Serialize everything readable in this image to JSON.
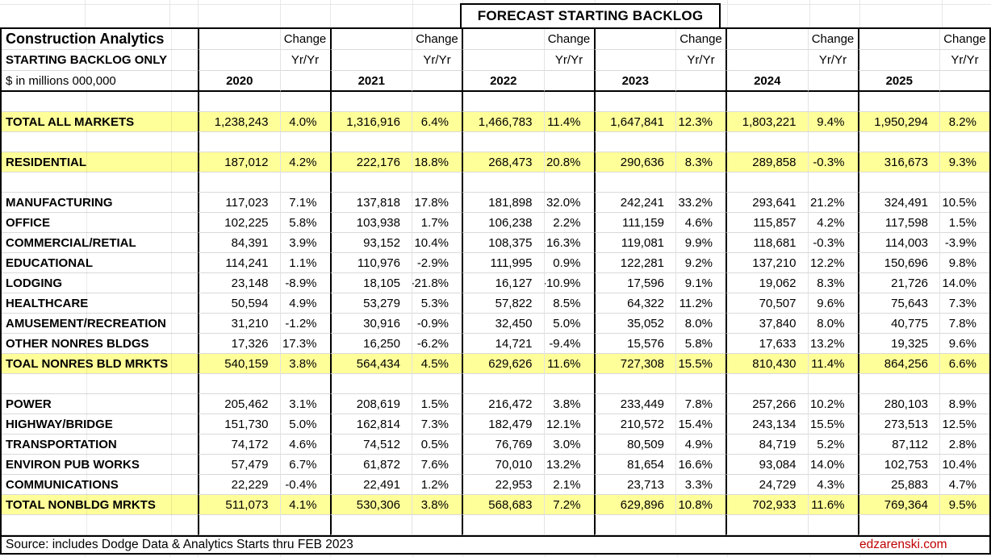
{
  "title": "FORECAST STARTING BACKLOG",
  "header": {
    "brand": "Construction Analytics",
    "subtitle": "STARTING BACKLOG ONLY",
    "units_note": "$ in millions 000,000",
    "change_label": "Change",
    "change_sublabel": "Yr/Yr",
    "years": [
      "2020",
      "2021",
      "2022",
      "2023",
      "2024",
      "2025"
    ]
  },
  "chart_data": {
    "type": "table",
    "title": "FORECAST STARTING BACKLOG",
    "units": "$ in millions 000,000",
    "column_groups": [
      "2020",
      "2021",
      "2022",
      "2023",
      "2024",
      "2025"
    ],
    "subcolumns": [
      "Starting Backlog $M",
      "Change Yr/Yr"
    ],
    "rows": [
      {
        "type": "spacer"
      },
      {
        "type": "data",
        "label": "TOTAL ALL MARKETS",
        "highlight": true,
        "cells": [
          [
            "1,238,243",
            "4.0%"
          ],
          [
            "1,316,916",
            "6.4%"
          ],
          [
            "1,466,783",
            "11.4%"
          ],
          [
            "1,647,841",
            "12.3%"
          ],
          [
            "1,803,221",
            "9.4%"
          ],
          [
            "1,950,294",
            "8.2%"
          ]
        ]
      },
      {
        "type": "spacer"
      },
      {
        "type": "data",
        "label": "RESIDENTIAL",
        "highlight": true,
        "cells": [
          [
            "187,012",
            "4.2%"
          ],
          [
            "222,176",
            "18.8%"
          ],
          [
            "268,473",
            "20.8%"
          ],
          [
            "290,636",
            "8.3%"
          ],
          [
            "289,858",
            "-0.3%"
          ],
          [
            "316,673",
            "9.3%"
          ]
        ]
      },
      {
        "type": "spacer"
      },
      {
        "type": "data",
        "label": "MANUFACTURING",
        "highlight": false,
        "cells": [
          [
            "117,023",
            "7.1%"
          ],
          [
            "137,818",
            "17.8%"
          ],
          [
            "181,898",
            "32.0%"
          ],
          [
            "242,241",
            "33.2%"
          ],
          [
            "293,641",
            "21.2%"
          ],
          [
            "324,491",
            "10.5%"
          ]
        ]
      },
      {
        "type": "data",
        "label": "OFFICE",
        "highlight": false,
        "cells": [
          [
            "102,225",
            "5.8%"
          ],
          [
            "103,938",
            "1.7%"
          ],
          [
            "106,238",
            "2.2%"
          ],
          [
            "111,159",
            "4.6%"
          ],
          [
            "115,857",
            "4.2%"
          ],
          [
            "117,598",
            "1.5%"
          ]
        ]
      },
      {
        "type": "data",
        "label": "COMMERCIAL/RETIAL",
        "highlight": false,
        "cells": [
          [
            "84,391",
            "3.9%"
          ],
          [
            "93,152",
            "10.4%"
          ],
          [
            "108,375",
            "16.3%"
          ],
          [
            "119,081",
            "9.9%"
          ],
          [
            "118,681",
            "-0.3%"
          ],
          [
            "114,003",
            "-3.9%"
          ]
        ]
      },
      {
        "type": "data",
        "label": "EDUCATIONAL",
        "highlight": false,
        "cells": [
          [
            "114,241",
            "1.1%"
          ],
          [
            "110,976",
            "-2.9%"
          ],
          [
            "111,995",
            "0.9%"
          ],
          [
            "122,281",
            "9.2%"
          ],
          [
            "137,210",
            "12.2%"
          ],
          [
            "150,696",
            "9.8%"
          ]
        ]
      },
      {
        "type": "data",
        "label": "LODGING",
        "highlight": false,
        "cells": [
          [
            "23,148",
            "-8.9%"
          ],
          [
            "18,105",
            "-21.8%"
          ],
          [
            "16,127",
            "-10.9%"
          ],
          [
            "17,596",
            "9.1%"
          ],
          [
            "19,062",
            "8.3%"
          ],
          [
            "21,726",
            "14.0%"
          ]
        ]
      },
      {
        "type": "data",
        "label": "HEALTHCARE",
        "highlight": false,
        "cells": [
          [
            "50,594",
            "4.9%"
          ],
          [
            "53,279",
            "5.3%"
          ],
          [
            "57,822",
            "8.5%"
          ],
          [
            "64,322",
            "11.2%"
          ],
          [
            "70,507",
            "9.6%"
          ],
          [
            "75,643",
            "7.3%"
          ]
        ]
      },
      {
        "type": "data",
        "label": "AMUSEMENT/RECREATION",
        "highlight": false,
        "cells": [
          [
            "31,210",
            "-1.2%"
          ],
          [
            "30,916",
            "-0.9%"
          ],
          [
            "32,450",
            "5.0%"
          ],
          [
            "35,052",
            "8.0%"
          ],
          [
            "37,840",
            "8.0%"
          ],
          [
            "40,775",
            "7.8%"
          ]
        ]
      },
      {
        "type": "data",
        "label": "OTHER NONRES BLDGS",
        "highlight": false,
        "cells": [
          [
            "17,326",
            "17.3%"
          ],
          [
            "16,250",
            "-6.2%"
          ],
          [
            "14,721",
            "-9.4%"
          ],
          [
            "15,576",
            "5.8%"
          ],
          [
            "17,633",
            "13.2%"
          ],
          [
            "19,325",
            "9.6%"
          ]
        ]
      },
      {
        "type": "data",
        "label": "TOAL NONRES BLD MRKTS",
        "highlight": true,
        "cells": [
          [
            "540,159",
            "3.8%"
          ],
          [
            "564,434",
            "4.5%"
          ],
          [
            "629,626",
            "11.6%"
          ],
          [
            "727,308",
            "15.5%"
          ],
          [
            "810,430",
            "11.4%"
          ],
          [
            "864,256",
            "6.6%"
          ]
        ]
      },
      {
        "type": "spacer"
      },
      {
        "type": "data",
        "label": "POWER",
        "highlight": false,
        "cells": [
          [
            "205,462",
            "3.1%"
          ],
          [
            "208,619",
            "1.5%"
          ],
          [
            "216,472",
            "3.8%"
          ],
          [
            "233,449",
            "7.8%"
          ],
          [
            "257,266",
            "10.2%"
          ],
          [
            "280,103",
            "8.9%"
          ]
        ]
      },
      {
        "type": "data",
        "label": "HIGHWAY/BRIDGE",
        "highlight": false,
        "cells": [
          [
            "151,730",
            "5.0%"
          ],
          [
            "162,814",
            "7.3%"
          ],
          [
            "182,479",
            "12.1%"
          ],
          [
            "210,572",
            "15.4%"
          ],
          [
            "243,134",
            "15.5%"
          ],
          [
            "273,513",
            "12.5%"
          ]
        ]
      },
      {
        "type": "data",
        "label": "TRANSPORTATION",
        "highlight": false,
        "cells": [
          [
            "74,172",
            "4.6%"
          ],
          [
            "74,512",
            "0.5%"
          ],
          [
            "76,769",
            "3.0%"
          ],
          [
            "80,509",
            "4.9%"
          ],
          [
            "84,719",
            "5.2%"
          ],
          [
            "87,112",
            "2.8%"
          ]
        ]
      },
      {
        "type": "data",
        "label": "ENVIRON PUB WORKS",
        "highlight": false,
        "cells": [
          [
            "57,479",
            "6.7%"
          ],
          [
            "61,872",
            "7.6%"
          ],
          [
            "70,010",
            "13.2%"
          ],
          [
            "81,654",
            "16.6%"
          ],
          [
            "93,084",
            "14.0%"
          ],
          [
            "102,753",
            "10.4%"
          ]
        ]
      },
      {
        "type": "data",
        "label": "COMMUNICATIONS",
        "highlight": false,
        "cells": [
          [
            "22,229",
            "-0.4%"
          ],
          [
            "22,491",
            "1.2%"
          ],
          [
            "22,953",
            "2.1%"
          ],
          [
            "23,713",
            "3.3%"
          ],
          [
            "24,729",
            "4.3%"
          ],
          [
            "25,883",
            "4.7%"
          ]
        ]
      },
      {
        "type": "data",
        "label": "TOTAL NONBLDG MRKTS",
        "highlight": true,
        "cells": [
          [
            "511,073",
            "4.1%"
          ],
          [
            "530,306",
            "3.8%"
          ],
          [
            "568,683",
            "7.2%"
          ],
          [
            "629,896",
            "10.8%"
          ],
          [
            "702,933",
            "11.6%"
          ],
          [
            "769,364",
            "9.5%"
          ]
        ]
      },
      {
        "type": "spacer"
      }
    ]
  },
  "footer": {
    "source": "Source: includes Dodge Data & Analytics Starts thru FEB 2023",
    "website": "edzarenski.com"
  },
  "colors": {
    "highlight_yellow": "#FFFF99",
    "website_red": "#C00000",
    "gridline_gray": "#D9D9D9",
    "border_black": "#000000"
  }
}
